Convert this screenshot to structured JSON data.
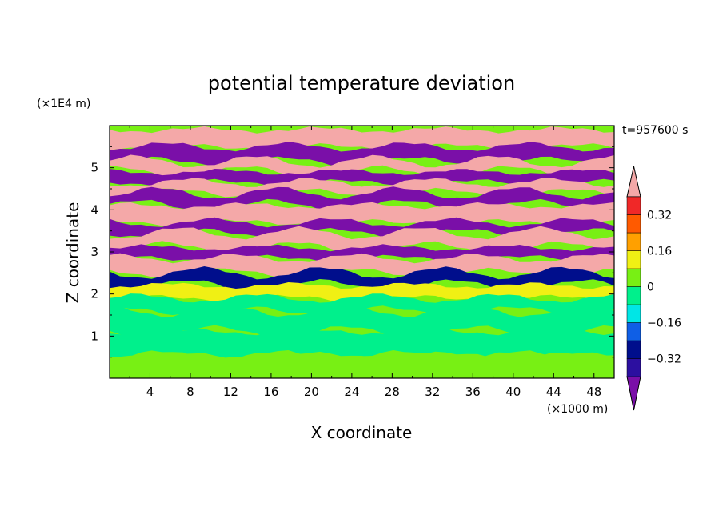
{
  "chart_data": {
    "type": "heatmap",
    "title": "potential temperature deviation",
    "xlabel": "X coordinate",
    "ylabel": "Z coordinate",
    "x_unit": "(×1000 m)",
    "y_unit": "(×1E4 m)",
    "time_label": "t=957600 s",
    "xlim": [
      0,
      50
    ],
    "ylim": [
      0,
      6
    ],
    "x_ticks": [
      {
        "value": 4,
        "label": "4"
      },
      {
        "value": 8,
        "label": "8"
      },
      {
        "value": 12,
        "label": "12"
      },
      {
        "value": 16,
        "label": "16"
      },
      {
        "value": 20,
        "label": "20"
      },
      {
        "value": 24,
        "label": "24"
      },
      {
        "value": 28,
        "label": "28"
      },
      {
        "value": 32,
        "label": "32"
      },
      {
        "value": 36,
        "label": "36"
      },
      {
        "value": 40,
        "label": "40"
      },
      {
        "value": 44,
        "label": "44"
      },
      {
        "value": 48,
        "label": "48"
      }
    ],
    "y_ticks": [
      {
        "value": 1,
        "label": "1"
      },
      {
        "value": 2,
        "label": "2"
      },
      {
        "value": 3,
        "label": "3"
      },
      {
        "value": 4,
        "label": "4"
      },
      {
        "value": 5,
        "label": "5"
      }
    ],
    "levels": [
      -0.4,
      -0.32,
      -0.24,
      -0.16,
      -0.08,
      0,
      0.08,
      0.16,
      0.24,
      0.32,
      0.4
    ],
    "colorbar_labels": [
      {
        "value": 0.32,
        "label": "0.32"
      },
      {
        "value": 0.16,
        "label": "0.16"
      },
      {
        "value": 0,
        "label": "0"
      },
      {
        "value": -0.16,
        "label": "−0.16"
      },
      {
        "value": -0.32,
        "label": "−0.32"
      }
    ],
    "colors": [
      "#7a0fa8",
      "#2c0fa0",
      "#000e8c",
      "#0f5fe6",
      "#00e6e6",
      "#00f08c",
      "#78f014",
      "#f0f014",
      "#ffa000",
      "#ff5a00",
      "#f02828",
      "#f4a8a8"
    ],
    "layers_top_to_bottom": [
      {
        "z": [
          5.5,
          5.9
        ],
        "value": 0.45
      },
      {
        "z": [
          5.15,
          5.5
        ],
        "value": -0.45
      },
      {
        "z": [
          4.9,
          5.15
        ],
        "value": 0.45
      },
      {
        "z": [
          4.65,
          4.9
        ],
        "value": -0.45
      },
      {
        "z": [
          4.4,
          4.65
        ],
        "value": 0.45
      },
      {
        "z": [
          4.1,
          4.4
        ],
        "value": -0.45
      },
      {
        "z": [
          3.7,
          4.1
        ],
        "value": 0.45
      },
      {
        "z": [
          3.45,
          3.7
        ],
        "value": -0.45
      },
      {
        "z": [
          3.1,
          3.45
        ],
        "value": 0.45
      },
      {
        "z": [
          2.85,
          3.1
        ],
        "value": -0.4
      },
      {
        "z": [
          2.5,
          2.85
        ],
        "value": 0.42
      },
      {
        "z": [
          2.2,
          2.5
        ],
        "value": -0.3
      },
      {
        "z": [
          1.9,
          2.2
        ],
        "value": 0.1
      },
      {
        "z": [
          1.6,
          1.9
        ],
        "value": -0.05
      },
      {
        "z": [
          1.1,
          1.6
        ],
        "value": -0.05
      },
      {
        "z": [
          0.55,
          1.1
        ],
        "value": -0.05
      },
      {
        "z": [
          0,
          0.55
        ],
        "value": 0.05
      }
    ]
  }
}
